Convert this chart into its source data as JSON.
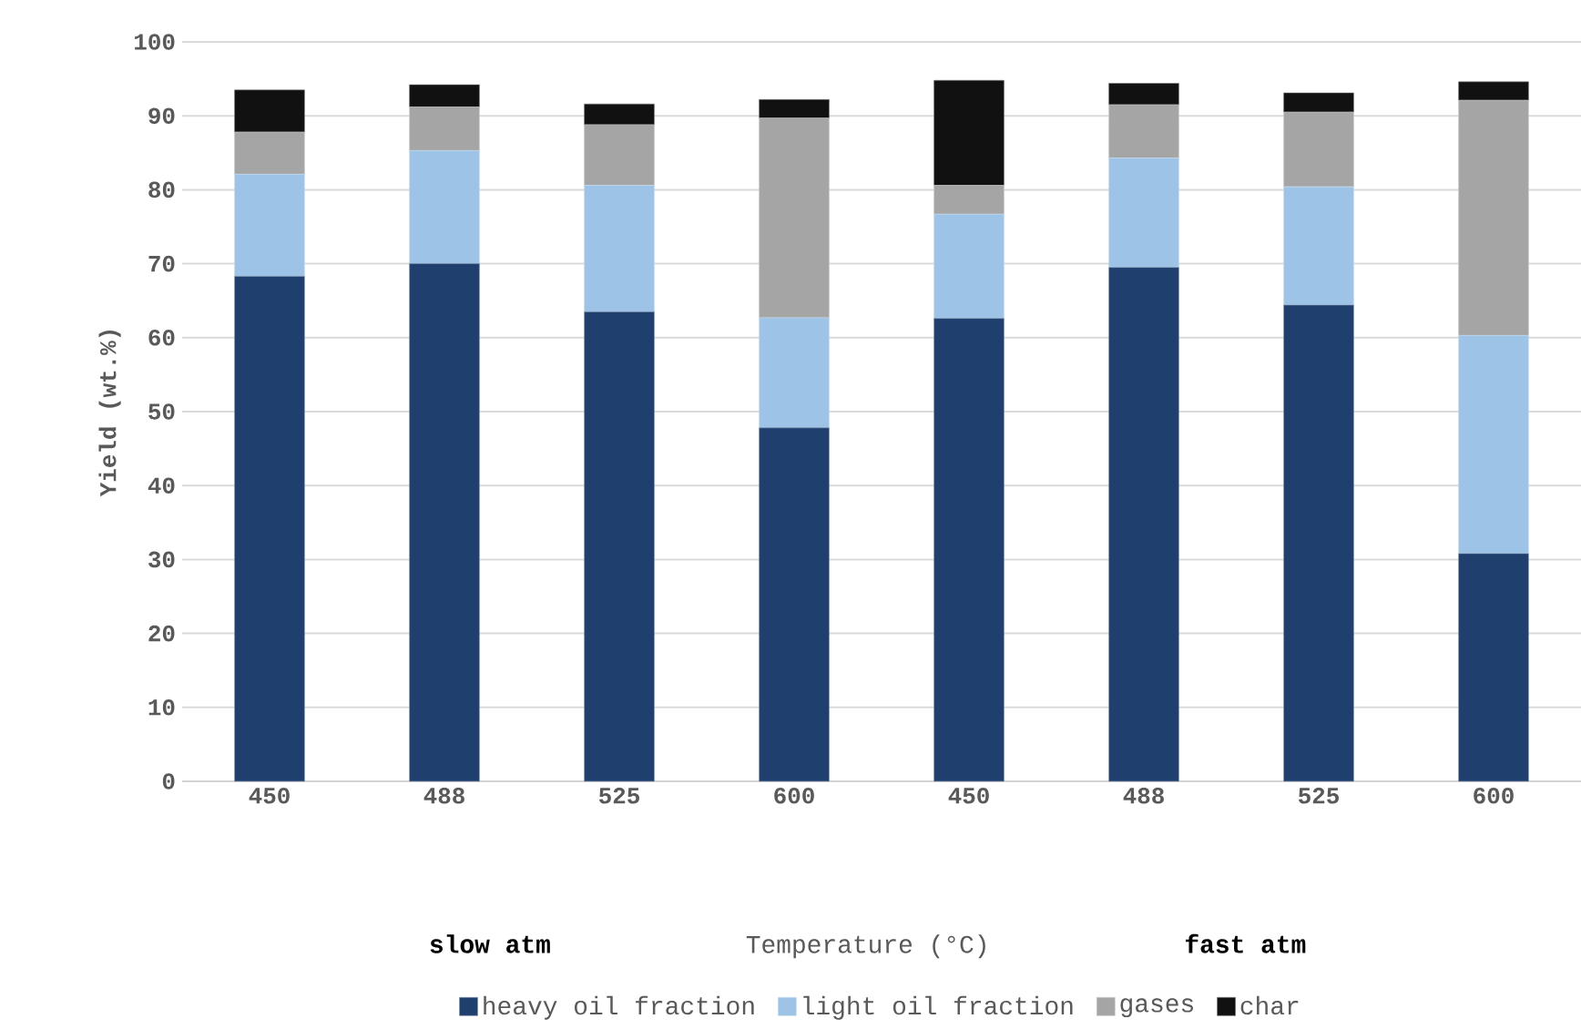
{
  "chart_data": {
    "type": "bar",
    "stacked": true,
    "ylabel": "Yield (wt.%)",
    "categories": [
      "450",
      "488",
      "525",
      "600",
      "450",
      "488",
      "525",
      "600"
    ],
    "series": [
      {
        "name": "heavy oil fraction",
        "color": "#1f3f6e",
        "values": [
          68.3,
          70.0,
          63.5,
          47.8,
          62.6,
          69.5,
          64.4,
          30.8
        ]
      },
      {
        "name": "light oil fraction",
        "color": "#9dc3e6",
        "values": [
          13.8,
          15.3,
          17.1,
          14.9,
          14.1,
          14.8,
          16.0,
          29.5
        ]
      },
      {
        "name": "gases",
        "color": "#a5a5a5",
        "values": [
          5.7,
          5.9,
          8.2,
          27.0,
          3.9,
          7.2,
          10.1,
          31.8
        ]
      },
      {
        "name": "char",
        "color": "#111111",
        "values": [
          5.7,
          3.0,
          2.8,
          2.5,
          14.2,
          2.9,
          2.6,
          2.5
        ]
      }
    ],
    "ylim": [
      0,
      100
    ],
    "yticks": [
      0,
      10,
      20,
      30,
      40,
      50,
      60,
      70,
      80,
      90,
      100
    ],
    "grid": "y",
    "legend": "bottom",
    "annotations": [
      "slow atm",
      "Temperature (°C)",
      "fast atm"
    ]
  }
}
